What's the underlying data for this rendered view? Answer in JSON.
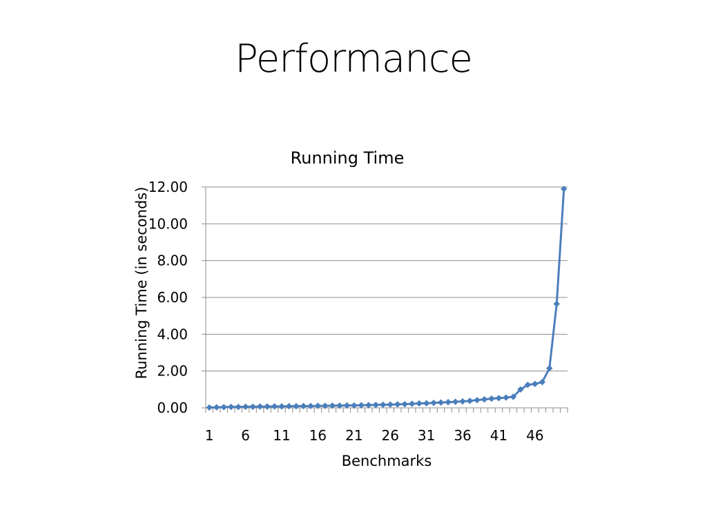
{
  "slide": {
    "title": "Performance"
  },
  "chart_data": {
    "type": "line",
    "title": "Running Time",
    "xlabel": "Benchmarks",
    "ylabel": "Running Time (in seconds)",
    "ylim": [
      0,
      12
    ],
    "ytick_step": 2,
    "ytick_labels": [
      "0.00",
      "2.00",
      "4.00",
      "6.00",
      "8.00",
      "10.00",
      "12.00"
    ],
    "x": [
      1,
      2,
      3,
      4,
      5,
      6,
      7,
      8,
      9,
      10,
      11,
      12,
      13,
      14,
      15,
      16,
      17,
      18,
      19,
      20,
      21,
      22,
      23,
      24,
      25,
      26,
      27,
      28,
      29,
      30,
      31,
      32,
      33,
      34,
      35,
      36,
      37,
      38,
      39,
      40,
      41,
      42,
      43,
      44,
      45,
      46,
      47,
      48,
      49,
      50
    ],
    "xtick_labels": [
      "1",
      "6",
      "11",
      "16",
      "21",
      "26",
      "31",
      "36",
      "41",
      "46"
    ],
    "grid": true,
    "legend": "none",
    "line_color": "#4a7ebb",
    "series": [
      {
        "values": [
          0.02,
          0.03,
          0.04,
          0.05,
          0.05,
          0.06,
          0.06,
          0.07,
          0.07,
          0.08,
          0.08,
          0.09,
          0.09,
          0.1,
          0.1,
          0.11,
          0.11,
          0.12,
          0.12,
          0.13,
          0.13,
          0.14,
          0.15,
          0.16,
          0.17,
          0.18,
          0.19,
          0.2,
          0.22,
          0.24,
          0.25,
          0.27,
          0.29,
          0.31,
          0.33,
          0.35,
          0.38,
          0.42,
          0.46,
          0.5,
          0.53,
          0.56,
          0.6,
          1.0,
          1.25,
          1.3,
          1.4,
          2.15,
          5.65,
          11.9
        ]
      }
    ]
  }
}
